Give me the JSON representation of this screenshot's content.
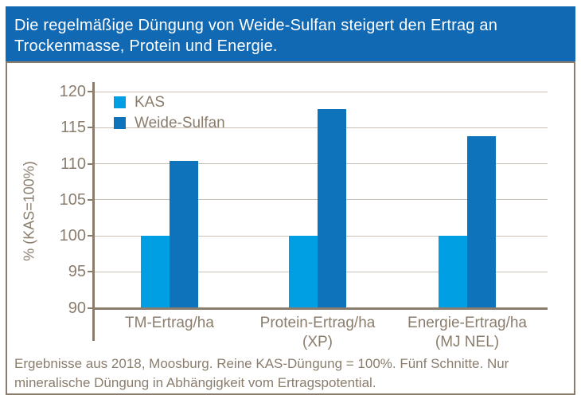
{
  "header": {
    "line1": "Die regelmäßige Düngung von Weide-Sulfan steigert den Ertrag an",
    "line2": "Trockenmasse, Protein und Energie.",
    "bg_color": "#1168b3",
    "text_color": "#ffffff"
  },
  "chart_data": {
    "type": "bar",
    "title": "",
    "categories": [
      {
        "line1": "TM-Ertrag/ha",
        "line2": ""
      },
      {
        "line1": "Protein-Ertrag/ha",
        "line2": "(XP)"
      },
      {
        "line1": "Energie-Ertrag/ha",
        "line2": "(MJ NEL)"
      }
    ],
    "series": [
      {
        "name": "KAS",
        "color": "#009ee2",
        "values": [
          100,
          100,
          100
        ]
      },
      {
        "name": "Weide-Sulfan",
        "color": "#0e73ba",
        "values": [
          110.4,
          117.6,
          113.8
        ]
      }
    ],
    "xlabel": "",
    "ylabel": "% (KAS=100%)",
    "ylim": [
      90,
      120
    ],
    "yticks": [
      90,
      95,
      100,
      105,
      110,
      115,
      120
    ],
    "grid": true,
    "legend_position": "top-left"
  },
  "footer": {
    "line1": "Ergebnisse aus 2018, Moosburg. Reine KAS-Düngung = 100%. Fünf Schnitte. Nur",
    "line2": "mineralische Düngung in Abhängigkeit vom Ertragspotential."
  },
  "colors": {
    "axis": "#8a7d6d",
    "grid": "#c9c1b5",
    "text": "#8a7d6d",
    "border": "#8a7d6d"
  }
}
